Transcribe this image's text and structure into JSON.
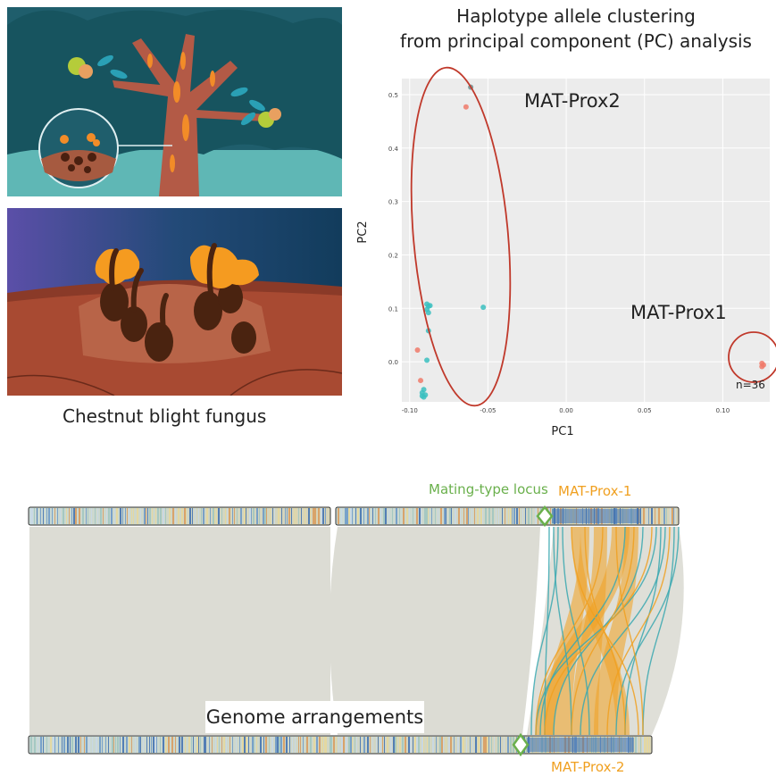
{
  "illustration": {
    "caption": "Chestnut blight fungus"
  },
  "pca": {
    "title_line1": "Haplotype allele clustering",
    "title_line2": "from principal component (PC) analysis",
    "group_label_1": "MAT-Prox2",
    "group_label_2": "MAT-Prox1",
    "count_label": "n=36"
  },
  "chart_data": {
    "type": "scatter",
    "xlabel": "PC1",
    "ylabel": "PC2",
    "xlim": [
      -0.105,
      0.13
    ],
    "ylim": [
      -0.075,
      0.53
    ],
    "x_ticks": [
      "-0.10",
      "-0.05",
      "0.00",
      "0.05",
      "0.10"
    ],
    "y_ticks": [
      "0.0",
      "0.1",
      "0.2",
      "0.3",
      "0.4",
      "0.5"
    ],
    "grid": true,
    "colors": {
      "teal": "#3bbfbf",
      "salmon": "#f07a6a",
      "gray": "#6f8f8f",
      "panel": "#ececec",
      "ellipse": "#c0392b"
    },
    "series": [
      {
        "color": "teal",
        "points": [
          [
            -0.089,
            0.108
          ],
          [
            -0.088,
            0.104
          ],
          [
            -0.089,
            0.098
          ],
          [
            -0.088,
            0.092
          ],
          [
            -0.087,
            0.105
          ],
          [
            -0.088,
            0.058
          ],
          [
            -0.089,
            0.003
          ],
          [
            -0.091,
            -0.052
          ],
          [
            -0.092,
            -0.058
          ],
          [
            -0.09,
            -0.062
          ],
          [
            -0.091,
            -0.066
          ],
          [
            -0.092,
            -0.064
          ],
          [
            -0.053,
            0.102
          ]
        ]
      },
      {
        "color": "salmon",
        "points": [
          [
            -0.064,
            0.477
          ],
          [
            -0.095,
            0.022
          ],
          [
            -0.093,
            -0.035
          ],
          [
            0.125,
            -0.003
          ],
          [
            0.126,
            -0.006
          ],
          [
            0.125,
            -0.009
          ]
        ]
      },
      {
        "color": "gray",
        "points": [
          [
            -0.061,
            0.514
          ]
        ]
      }
    ]
  },
  "genome": {
    "label_locus": "Mating-type locus",
    "label_prox1": "MAT-Prox-1",
    "label_prox2": "MAT-Prox-2",
    "caption": "Genome arrangements",
    "colors": {
      "locus": "#6ab04c",
      "prox": "#f0a020",
      "ribbon_teal": "#3aa8b0",
      "ribbon_gray": "#dcdcd4"
    }
  }
}
